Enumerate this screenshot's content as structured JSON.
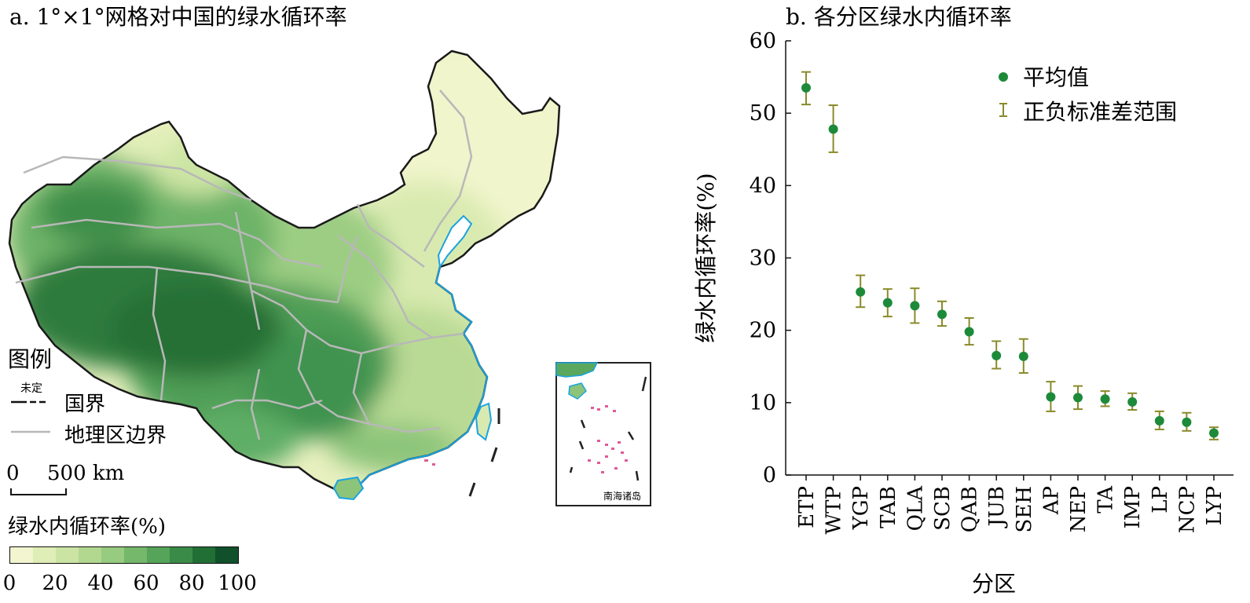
{
  "panel_a": {
    "title": "a. 1°×1°网格对中国的绿水循环率",
    "legend": {
      "title": "图例",
      "undetermined_label": "未定",
      "national_border_label": "国界",
      "region_border_label": "地理区边界"
    },
    "scale": {
      "zero": "0",
      "label": "500 km"
    },
    "colorbar": {
      "title": "绿水内循环率(%)",
      "colors": [
        "#f2f5cf",
        "#dfedb6",
        "#cbe4a4",
        "#b2d890",
        "#97cb80",
        "#76b86b",
        "#56a45a",
        "#3b8b48",
        "#226f36",
        "#10502a"
      ],
      "ticks": [
        "0",
        "20",
        "40",
        "60",
        "80",
        "100"
      ]
    },
    "inset_label": "南海诸岛"
  },
  "panel_b": {
    "title": "b. 各分区绿水内循环率"
  },
  "chart_data": {
    "type": "scatter",
    "title": "b. 各分区绿水内循环率",
    "xlabel": "分区",
    "ylabel": "绿水内循环率(%)",
    "ylim": [
      0,
      60
    ],
    "yticks": [
      0,
      10,
      20,
      30,
      40,
      50,
      60
    ],
    "grid": false,
    "legend_position": "top-right",
    "legend": [
      "平均值",
      "正负标准差范围"
    ],
    "marker_color": "#1d8a3a",
    "errorbar_color": "#8a8a2a",
    "categories": [
      "ETP",
      "WTP",
      "YGP",
      "TAB",
      "QLA",
      "SCB",
      "QAB",
      "JUB",
      "SEH",
      "AP",
      "NEP",
      "TA",
      "IMP",
      "LP",
      "NCP",
      "LYP"
    ],
    "series": [
      {
        "name": "平均值",
        "values": [
          53.5,
          47.8,
          25.3,
          23.8,
          23.4,
          22.2,
          19.8,
          16.5,
          16.4,
          10.8,
          10.7,
          10.5,
          10.1,
          7.5,
          7.3,
          5.8
        ],
        "err_low": [
          51.2,
          44.6,
          23.2,
          21.9,
          21.0,
          20.6,
          18.0,
          14.7,
          14.1,
          8.8,
          9.1,
          9.5,
          9.0,
          6.3,
          6.1,
          4.9
        ],
        "err_high": [
          55.7,
          51.1,
          27.6,
          25.7,
          25.8,
          24.0,
          21.7,
          18.5,
          18.8,
          12.9,
          12.3,
          11.6,
          11.3,
          8.8,
          8.6,
          6.6
        ]
      }
    ]
  }
}
